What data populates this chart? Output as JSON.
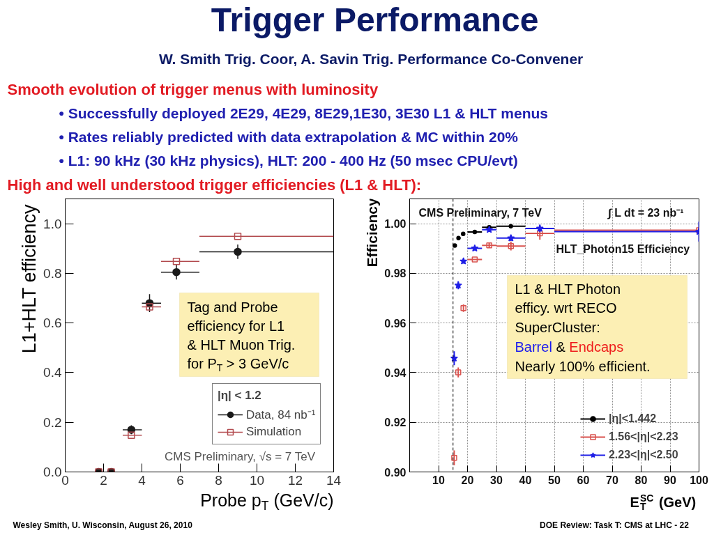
{
  "chart_data": [
    {
      "type": "other",
      "title": "Trigger Performance",
      "subtitle": "W. Smith Trig. Coor, A. Savin Trig. Performance Co-Convener",
      "annotations": [
        "Smooth evolution of trigger menus with luminosity",
        "• Successfully deployed 2E29, 4E29, 8E29,1E30, 3E30 L1 & HLT menus",
        "• Rates reliably predicted with data extrapolation & MC within 20%",
        "• L1: 90 kHz (30 kHz physics), HLT: 200 - 400 Hz (50 msec CPU/evt)",
        "High and well understood trigger efficiencies (L1 & HLT):"
      ]
    },
    {
      "type": "scatter",
      "xlabel": "Probe p$_{T}$ (GeV/c)",
      "ylabel": "L1+HLT efficiency",
      "xlim": [
        0,
        14
      ],
      "xticks": [
        0,
        2,
        4,
        6,
        8,
        10,
        12,
        14
      ],
      "ylim": [
        0,
        1.1
      ],
      "yticks": [
        {
          "value": 0,
          "label": "0.0"
        },
        0.2,
        0.4,
        0.6,
        0.8,
        {
          "value": 1,
          "label": "1.0"
        }
      ],
      "grid": false,
      "legend": "bottom right",
      "legend_title": "|η| < 1.2",
      "x": [
        1.75,
        2.4,
        3.45,
        4.4,
        5.8,
        9
      ],
      "series": [
        {
          "name": "Data, 84 nb⁻¹",
          "color": "#1a1a1a",
          "marker": "circle",
          "values": [
            0,
            0,
            0.17,
            0.68,
            0.805,
            0.887
          ],
          "errors": [
            null,
            null,
            0.018,
            0.036,
            0.03,
            0.029
          ],
          "xerrors": [
            null,
            null,
            [
              3,
              4
            ],
            [
              4,
              5
            ],
            [
              5,
              7
            ],
            [
              7,
              14
            ]
          ]
        },
        {
          "name": "Simulation",
          "color": "#b24a4e",
          "marker": "square",
          "values": [
            0,
            0,
            0.148,
            0.665,
            0.848,
            0.949
          ],
          "xerrors": [
            null,
            null,
            [
              3,
              4
            ],
            [
              4,
              5
            ],
            [
              5,
              7
            ],
            [
              7,
              14
            ]
          ]
        }
      ],
      "annotations": [
        "Tag and Probe efficiency for  L1 & HLT Muon Trig. for P$_{T}$ > 3 GeV/c",
        "CMS Preliminary, √s = 7 TeV"
      ]
    },
    {
      "type": "scatter",
      "xlabel": "E$^{SC}$$_{T}$ (GeV)",
      "ylabel": "Efficiency",
      "xlim": [
        0,
        100
      ],
      "xticks": [
        10,
        20,
        30,
        40,
        50,
        60,
        70,
        80,
        90,
        100
      ],
      "ylim": [
        0.9,
        1.01
      ],
      "yticks": [
        {
          "value": 0.9,
          "label": "0.90"
        },
        0.92,
        0.94,
        0.96,
        0.98,
        {
          "value": 1,
          "label": "1.00"
        }
      ],
      "grid": true,
      "legend": "bottom right",
      "ref_lines": [
        {
          "axis": "x",
          "value": 15,
          "color": "#000000",
          "line_style": "dashed"
        }
      ],
      "series": [
        {
          "name": "|η|<1.442",
          "color": "#000000",
          "marker": "circle",
          "x": [
            15.6,
            16.9,
            18.5,
            22.5,
            27.5,
            35
          ],
          "values": [
            0.9912,
            0.9942,
            0.9959,
            0.9967,
            0.9986,
            0.999
          ],
          "xerrors": [
            null,
            null,
            null,
            [
              20,
              25
            ],
            [
              25,
              30
            ],
            [
              30,
              40
            ]
          ]
        },
        {
          "name": "1.56<|η|<2.23",
          "color": "#d9534f",
          "marker": "square",
          "x": [
            15.4,
            16.8,
            18.6,
            22.5,
            27.5,
            35,
            45,
            100
          ],
          "values": [
            0.9057,
            0.9401,
            0.966,
            0.9856,
            0.9913,
            0.991,
            0.9961,
            0.9974
          ],
          "errors": [
            0.003,
            0.002,
            0.0015,
            null,
            0.001,
            0.0018,
            0.0025,
            null
          ],
          "xerrors": [
            null,
            null,
            null,
            [
              20,
              25
            ],
            [
              25,
              30
            ],
            [
              30,
              40
            ],
            [
              40,
              50
            ],
            [
              50,
              100
            ]
          ]
        },
        {
          "name": "2.23<|η|<2.50",
          "color": "#1f1fe6",
          "marker": "star",
          "x": [
            15.4,
            16.8,
            18.6,
            22.5,
            27.5,
            35,
            45,
            100
          ],
          "values": [
            0.9458,
            0.9752,
            0.9849,
            0.9901,
            0.9976,
            0.9942,
            0.9981,
            0.9968
          ],
          "errors": [
            0.0028,
            0.0016,
            0.001,
            0.0008,
            0.0008,
            0.0012,
            0.0015,
            0.004
          ],
          "xerrors": [
            null,
            null,
            null,
            [
              20,
              25
            ],
            [
              25,
              30
            ],
            [
              30,
              40
            ],
            [
              40,
              50
            ],
            [
              50,
              100
            ]
          ]
        }
      ],
      "annotations": [
        "CMS Preliminary, 7 TeV",
        "∫ L dt = 23 nb⁻¹",
        "HLT_Photon15 Efficiency",
        "L1 & HLT Photon efficy. wrt RECO SuperCluster:",
        "Barrel",
        "&",
        "Endcaps",
        "Nearly 100% efficient."
      ]
    },
    {
      "type": "other",
      "annotations": [
        "Wesley Smith, U. Wisconsin, August 26, 2010",
        "DOE Review: Task T: CMS at LHC -  22"
      ]
    }
  ]
}
